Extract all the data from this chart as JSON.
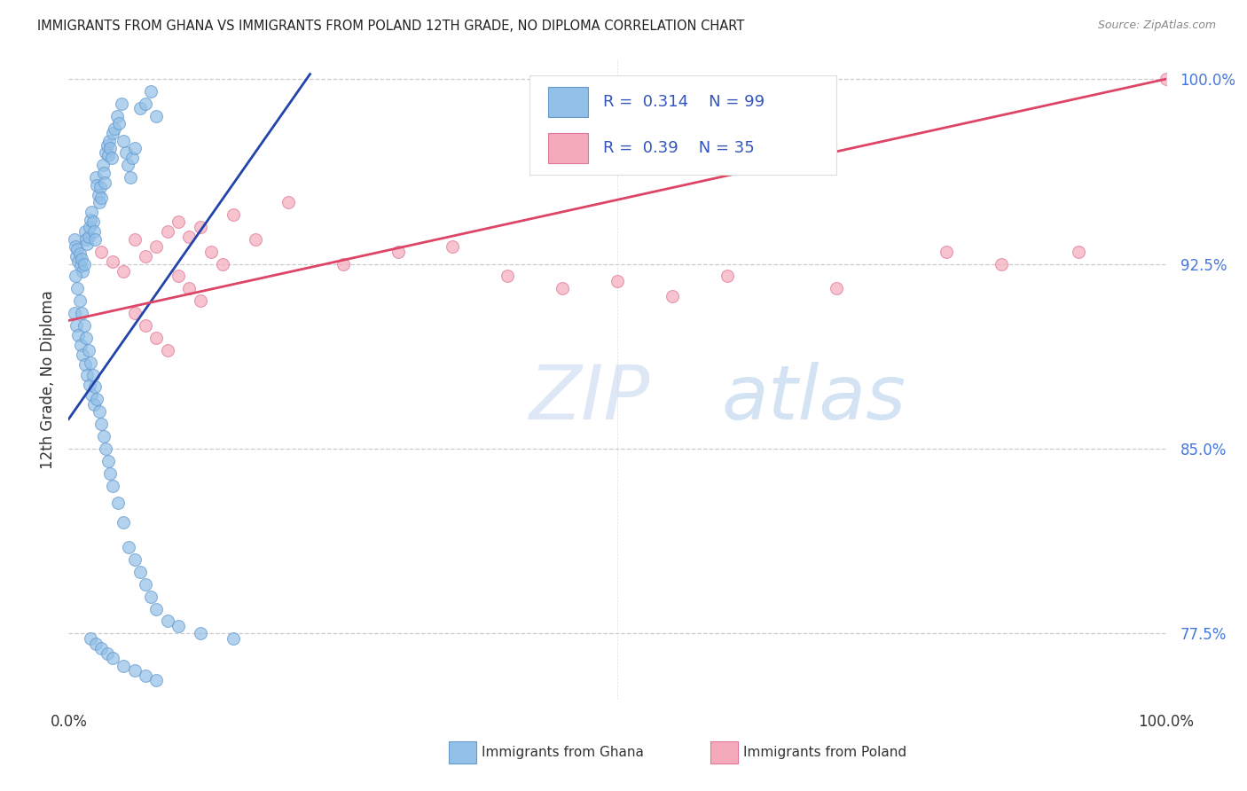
{
  "title": "IMMIGRANTS FROM GHANA VS IMMIGRANTS FROM POLAND 12TH GRADE, NO DIPLOMA CORRELATION CHART",
  "source": "Source: ZipAtlas.com",
  "ylabel": "12th Grade, No Diploma",
  "ghana_label": "Immigrants from Ghana",
  "poland_label": "Immigrants from Poland",
  "ghana_R": 0.314,
  "ghana_N": 99,
  "poland_R": 0.39,
  "poland_N": 35,
  "ghana_color": "#92C0E8",
  "ghana_edge_color": "#6699CC",
  "poland_color": "#F5AABB",
  "poland_edge_color": "#DD7799",
  "ghana_line_color": "#2244AA",
  "poland_line_color": "#DD4466",
  "background_color": "#FFFFFF",
  "grid_color": "#CCCCCC",
  "right_tick_color": "#4477DD",
  "title_color": "#222222",
  "xlim": [
    0,
    1.0
  ],
  "ylim": [
    0.748,
    1.008
  ],
  "yticks": [
    0.775,
    0.85,
    0.925,
    1.0
  ],
  "ytick_labels": [
    "77.5%",
    "85.0%",
    "92.5%",
    "100.0%"
  ],
  "watermark_zip": "ZIP",
  "watermark_atlas": "atlas",
  "ghana_x": [
    0.005,
    0.006,
    0.007,
    0.008,
    0.009,
    0.01,
    0.011,
    0.012,
    0.013,
    0.014,
    0.015,
    0.016,
    0.017,
    0.018,
    0.019,
    0.02,
    0.021,
    0.022,
    0.023,
    0.024,
    0.025,
    0.026,
    0.027,
    0.028,
    0.029,
    0.03,
    0.031,
    0.032,
    0.033,
    0.034,
    0.035,
    0.036,
    0.037,
    0.038,
    0.039,
    0.04,
    0.042,
    0.044,
    0.046,
    0.048,
    0.05,
    0.052,
    0.054,
    0.056,
    0.058,
    0.06,
    0.065,
    0.07,
    0.075,
    0.08,
    0.005,
    0.007,
    0.009,
    0.011,
    0.013,
    0.015,
    0.017,
    0.019,
    0.021,
    0.023,
    0.006,
    0.008,
    0.01,
    0.012,
    0.014,
    0.016,
    0.018,
    0.02,
    0.022,
    0.024,
    0.026,
    0.028,
    0.03,
    0.032,
    0.034,
    0.036,
    0.038,
    0.04,
    0.045,
    0.05,
    0.055,
    0.06,
    0.065,
    0.07,
    0.075,
    0.08,
    0.09,
    0.1,
    0.12,
    0.15,
    0.02,
    0.025,
    0.03,
    0.035,
    0.04,
    0.05,
    0.06,
    0.07,
    0.08
  ],
  "ghana_y": [
    0.935,
    0.932,
    0.928,
    0.931,
    0.926,
    0.929,
    0.924,
    0.927,
    0.922,
    0.925,
    0.938,
    0.935,
    0.933,
    0.936,
    0.94,
    0.943,
    0.946,
    0.942,
    0.938,
    0.935,
    0.96,
    0.957,
    0.953,
    0.95,
    0.956,
    0.952,
    0.965,
    0.962,
    0.958,
    0.97,
    0.973,
    0.969,
    0.975,
    0.972,
    0.968,
    0.978,
    0.98,
    0.985,
    0.982,
    0.99,
    0.975,
    0.97,
    0.965,
    0.96,
    0.968,
    0.972,
    0.988,
    0.99,
    0.995,
    0.985,
    0.905,
    0.9,
    0.896,
    0.892,
    0.888,
    0.884,
    0.88,
    0.876,
    0.872,
    0.868,
    0.92,
    0.915,
    0.91,
    0.905,
    0.9,
    0.895,
    0.89,
    0.885,
    0.88,
    0.875,
    0.87,
    0.865,
    0.86,
    0.855,
    0.85,
    0.845,
    0.84,
    0.835,
    0.828,
    0.82,
    0.81,
    0.805,
    0.8,
    0.795,
    0.79,
    0.785,
    0.78,
    0.778,
    0.775,
    0.773,
    0.773,
    0.771,
    0.769,
    0.767,
    0.765,
    0.762,
    0.76,
    0.758,
    0.756
  ],
  "poland_x": [
    0.03,
    0.04,
    0.05,
    0.06,
    0.07,
    0.08,
    0.09,
    0.1,
    0.11,
    0.12,
    0.13,
    0.14,
    0.06,
    0.07,
    0.08,
    0.09,
    0.1,
    0.11,
    0.12,
    0.15,
    0.17,
    0.2,
    0.25,
    0.3,
    0.35,
    0.4,
    0.45,
    0.5,
    0.55,
    0.6,
    0.7,
    0.8,
    0.85,
    0.92,
    1.0
  ],
  "poland_y": [
    0.93,
    0.926,
    0.922,
    0.935,
    0.928,
    0.932,
    0.938,
    0.942,
    0.936,
    0.94,
    0.93,
    0.925,
    0.905,
    0.9,
    0.895,
    0.89,
    0.92,
    0.915,
    0.91,
    0.945,
    0.935,
    0.95,
    0.925,
    0.93,
    0.932,
    0.92,
    0.915,
    0.918,
    0.912,
    0.92,
    0.915,
    0.93,
    0.925,
    0.93,
    1.0
  ],
  "ghana_line_x0": 0.0,
  "ghana_line_y0": 0.862,
  "ghana_line_x1": 0.22,
  "ghana_line_y1": 1.002,
  "poland_line_x0": 0.0,
  "poland_line_y0": 0.902,
  "poland_line_x1": 1.0,
  "poland_line_y1": 1.0
}
